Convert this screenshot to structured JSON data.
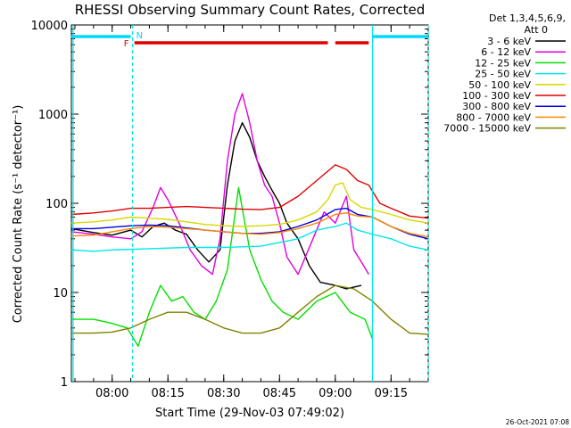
{
  "chart_data": {
    "type": "line",
    "title": "RHESSI Observing Summary Count Rates, Corrected",
    "xlabel": "Start Time (29-Nov-03 07:49:02)",
    "ylabel": "Corrected Count Rate (s⁻¹ detector⁻¹)",
    "y_scale": "log",
    "ylim": [
      1,
      10000
    ],
    "xlim": [
      "07:49:02",
      "09:25:00"
    ],
    "x_ticks": [
      "08:00",
      "08:15",
      "08:30",
      "08:45",
      "09:00",
      "09:15"
    ],
    "y_ticks": [
      "1",
      "10",
      "100",
      "1000",
      "10000"
    ],
    "legend_header": [
      "Det 1,3,4,5,6,9,",
      "Att 0"
    ],
    "timestamp": "26-Oct-2021 07:08",
    "flags": {
      "N": {
        "label": "N",
        "color": "#00d8ff",
        "spans": [
          [
            "07:49",
            "08:05"
          ],
          [
            "09:10",
            "09:25"
          ]
        ]
      },
      "F": {
        "label": "F",
        "color": "#e00000",
        "spans": [
          [
            "08:06",
            "08:58"
          ],
          [
            "09:00",
            "09:09"
          ]
        ]
      }
    },
    "vlines": {
      "solid": [
        "07:49:30",
        "09:10:00"
      ],
      "dashed": [
        "08:05:30",
        "09:25:00"
      ]
    },
    "series": [
      {
        "name": "3 - 6 keV",
        "color": "#000000",
        "points": [
          [
            "07:49",
            52
          ],
          [
            "07:55",
            47
          ],
          [
            "08:00",
            44
          ],
          [
            "08:05",
            50
          ],
          [
            "08:08",
            42
          ],
          [
            "08:11",
            55
          ],
          [
            "08:14",
            60
          ],
          [
            "08:17",
            50
          ],
          [
            "08:20",
            45
          ],
          [
            "08:23",
            30
          ],
          [
            "08:26",
            22
          ],
          [
            "08:29",
            30
          ],
          [
            "08:31",
            160
          ],
          [
            "08:33",
            500
          ],
          [
            "08:35",
            800
          ],
          [
            "08:37",
            550
          ],
          [
            "08:39",
            300
          ],
          [
            "08:41",
            200
          ],
          [
            "08:43",
            140
          ],
          [
            "08:45",
            100
          ],
          [
            "08:47",
            60
          ],
          [
            "08:50",
            40
          ],
          [
            "08:53",
            20
          ],
          [
            "08:56",
            13
          ],
          [
            "09:00",
            12
          ],
          [
            "09:03",
            11
          ],
          [
            "09:07",
            12
          ]
        ]
      },
      {
        "name": "6 - 12 keV",
        "color": "#e000e0",
        "points": [
          [
            "07:49",
            48
          ],
          [
            "07:55",
            45
          ],
          [
            "08:00",
            42
          ],
          [
            "08:05",
            40
          ],
          [
            "08:08",
            48
          ],
          [
            "08:11",
            90
          ],
          [
            "08:13",
            150
          ],
          [
            "08:15",
            110
          ],
          [
            "08:18",
            60
          ],
          [
            "08:21",
            30
          ],
          [
            "08:24",
            20
          ],
          [
            "08:27",
            16
          ],
          [
            "08:29",
            40
          ],
          [
            "08:31",
            300
          ],
          [
            "08:33",
            1000
          ],
          [
            "08:35",
            1700
          ],
          [
            "08:37",
            800
          ],
          [
            "08:39",
            300
          ],
          [
            "08:41",
            160
          ],
          [
            "08:43",
            120
          ],
          [
            "08:45",
            60
          ],
          [
            "08:47",
            25
          ],
          [
            "08:50",
            16
          ],
          [
            "08:54",
            40
          ],
          [
            "08:57",
            80
          ],
          [
            "09:00",
            60
          ],
          [
            "09:03",
            120
          ],
          [
            "09:05",
            30
          ],
          [
            "09:07",
            22
          ],
          [
            "09:09",
            16
          ]
        ]
      },
      {
        "name": "12 - 25 keV",
        "color": "#00e000",
        "points": [
          [
            "07:49",
            5
          ],
          [
            "07:55",
            5
          ],
          [
            "08:00",
            4.5
          ],
          [
            "08:04",
            4
          ],
          [
            "08:07",
            2.5
          ],
          [
            "08:10",
            6
          ],
          [
            "08:13",
            12
          ],
          [
            "08:16",
            8
          ],
          [
            "08:19",
            9
          ],
          [
            "08:22",
            6
          ],
          [
            "08:25",
            5
          ],
          [
            "08:28",
            8
          ],
          [
            "08:31",
            18
          ],
          [
            "08:34",
            150
          ],
          [
            "08:37",
            30
          ],
          [
            "08:40",
            14
          ],
          [
            "08:43",
            8
          ],
          [
            "08:46",
            6
          ],
          [
            "08:50",
            5
          ],
          [
            "08:55",
            8
          ],
          [
            "09:00",
            10
          ],
          [
            "09:04",
            6
          ],
          [
            "09:08",
            5
          ],
          [
            "09:10",
            3
          ]
        ]
      },
      {
        "name": "25 - 50 keV",
        "color": "#00e8e8",
        "points": [
          [
            "07:49",
            30
          ],
          [
            "07:55",
            29
          ],
          [
            "08:00",
            30
          ],
          [
            "08:10",
            31
          ],
          [
            "08:20",
            32
          ],
          [
            "08:30",
            32
          ],
          [
            "08:40",
            33
          ],
          [
            "08:50",
            40
          ],
          [
            "08:55",
            50
          ],
          [
            "09:00",
            55
          ],
          [
            "09:03",
            60
          ],
          [
            "09:06",
            50
          ],
          [
            "09:10",
            45
          ],
          [
            "09:15",
            40
          ],
          [
            "09:20",
            33
          ],
          [
            "09:25",
            30
          ]
        ]
      },
      {
        "name": "50 - 100 keV",
        "color": "#d8d800",
        "points": [
          [
            "07:49",
            60
          ],
          [
            "07:55",
            62
          ],
          [
            "08:00",
            65
          ],
          [
            "08:05",
            70
          ],
          [
            "08:10",
            68
          ],
          [
            "08:15",
            66
          ],
          [
            "08:20",
            62
          ],
          [
            "08:25",
            58
          ],
          [
            "08:30",
            56
          ],
          [
            "08:35",
            55
          ],
          [
            "08:40",
            56
          ],
          [
            "08:45",
            58
          ],
          [
            "08:50",
            65
          ],
          [
            "08:55",
            80
          ],
          [
            "08:58",
            110
          ],
          [
            "09:00",
            160
          ],
          [
            "09:02",
            170
          ],
          [
            "09:04",
            110
          ],
          [
            "09:07",
            90
          ],
          [
            "09:10",
            85
          ],
          [
            "09:15",
            75
          ],
          [
            "09:20",
            65
          ],
          [
            "09:25",
            60
          ]
        ]
      },
      {
        "name": "100 - 300 keV",
        "color": "#e00000",
        "points": [
          [
            "07:49",
            75
          ],
          [
            "07:55",
            78
          ],
          [
            "08:00",
            82
          ],
          [
            "08:05",
            88
          ],
          [
            "08:10",
            88
          ],
          [
            "08:15",
            90
          ],
          [
            "08:20",
            92
          ],
          [
            "08:25",
            90
          ],
          [
            "08:30",
            88
          ],
          [
            "08:35",
            86
          ],
          [
            "08:40",
            85
          ],
          [
            "08:45",
            90
          ],
          [
            "08:50",
            120
          ],
          [
            "08:55",
            180
          ],
          [
            "09:00",
            270
          ],
          [
            "09:03",
            240
          ],
          [
            "09:06",
            180
          ],
          [
            "09:09",
            160
          ],
          [
            "09:12",
            100
          ],
          [
            "09:15",
            88
          ],
          [
            "09:20",
            72
          ],
          [
            "09:25",
            68
          ]
        ]
      },
      {
        "name": "300 - 800 keV",
        "color": "#0000e0",
        "points": [
          [
            "07:49",
            52
          ],
          [
            "07:55",
            52
          ],
          [
            "08:00",
            54
          ],
          [
            "08:05",
            56
          ],
          [
            "08:10",
            57
          ],
          [
            "08:15",
            56
          ],
          [
            "08:20",
            53
          ],
          [
            "08:25",
            50
          ],
          [
            "08:30",
            48
          ],
          [
            "08:35",
            46
          ],
          [
            "08:40",
            46
          ],
          [
            "08:45",
            48
          ],
          [
            "08:50",
            55
          ],
          [
            "08:55",
            65
          ],
          [
            "09:00",
            85
          ],
          [
            "09:03",
            88
          ],
          [
            "09:06",
            75
          ],
          [
            "09:10",
            70
          ],
          [
            "09:15",
            55
          ],
          [
            "09:20",
            45
          ],
          [
            "09:25",
            40
          ]
        ]
      },
      {
        "name": "800 - 7000 keV",
        "color": "#ff8800",
        "points": [
          [
            "07:49",
            43
          ],
          [
            "07:55",
            44
          ],
          [
            "08:00",
            48
          ],
          [
            "08:05",
            52
          ],
          [
            "08:10",
            55
          ],
          [
            "08:15",
            54
          ],
          [
            "08:20",
            52
          ],
          [
            "08:25",
            50
          ],
          [
            "08:30",
            48
          ],
          [
            "08:35",
            46
          ],
          [
            "08:40",
            45
          ],
          [
            "08:45",
            47
          ],
          [
            "08:50",
            52
          ],
          [
            "08:55",
            60
          ],
          [
            "09:00",
            75
          ],
          [
            "09:03",
            78
          ],
          [
            "09:06",
            72
          ],
          [
            "09:10",
            70
          ],
          [
            "09:15",
            55
          ],
          [
            "09:20",
            46
          ],
          [
            "09:25",
            42
          ]
        ]
      },
      {
        "name": "7000 - 15000 keV",
        "color": "#808000",
        "points": [
          [
            "07:49",
            3.5
          ],
          [
            "07:55",
            3.5
          ],
          [
            "08:00",
            3.6
          ],
          [
            "08:05",
            4
          ],
          [
            "08:10",
            5
          ],
          [
            "08:15",
            6
          ],
          [
            "08:20",
            6
          ],
          [
            "08:25",
            5
          ],
          [
            "08:30",
            4
          ],
          [
            "08:35",
            3.5
          ],
          [
            "08:40",
            3.5
          ],
          [
            "08:45",
            4
          ],
          [
            "08:50",
            6
          ],
          [
            "08:55",
            9
          ],
          [
            "09:00",
            12
          ],
          [
            "09:05",
            11
          ],
          [
            "09:10",
            8
          ],
          [
            "09:15",
            5
          ],
          [
            "09:20",
            3.5
          ],
          [
            "09:25",
            3.4
          ]
        ]
      }
    ]
  }
}
